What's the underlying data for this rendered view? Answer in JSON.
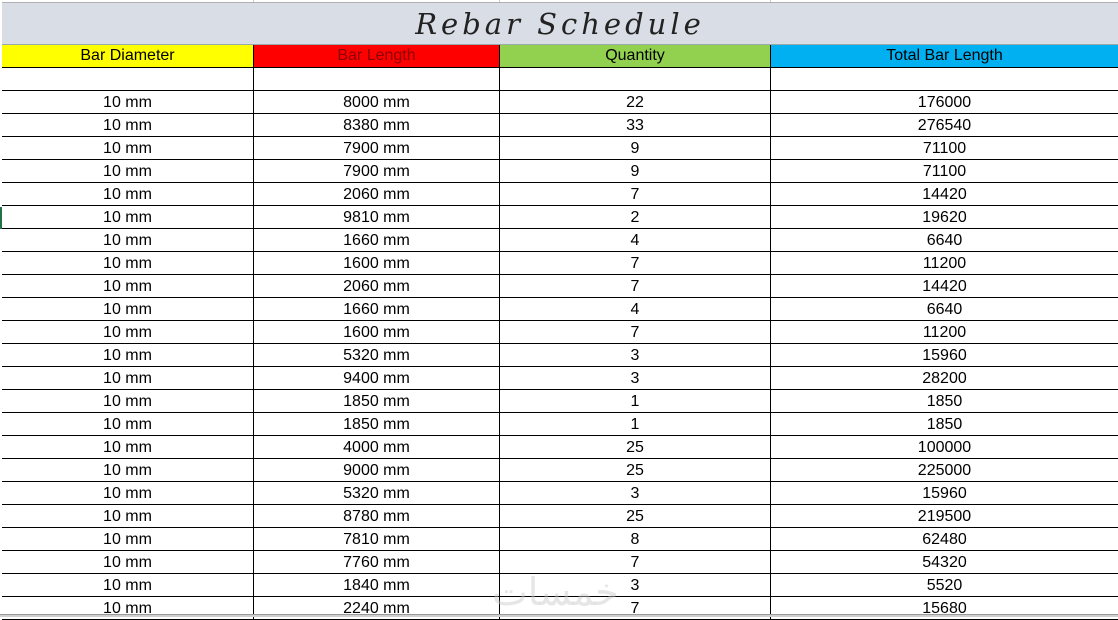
{
  "title": "Rebar Schedule",
  "headers": [
    {
      "label": "Bar Diameter",
      "bg": "#ffff00",
      "color": "#000000"
    },
    {
      "label": "Bar Length",
      "bg": "#ff0000",
      "color": "#8b0000"
    },
    {
      "label": "Quantity",
      "bg": "#92d050",
      "color": "#000000"
    },
    {
      "label": "Total Bar Length",
      "bg": "#00b0f0",
      "color": "#000000"
    }
  ],
  "rows": [
    [
      "10 mm",
      "8000 mm",
      "22",
      "176000"
    ],
    [
      "10 mm",
      "8380 mm",
      "33",
      "276540"
    ],
    [
      "10 mm",
      "7900 mm",
      "9",
      "71100"
    ],
    [
      "10 mm",
      "7900 mm",
      "9",
      "71100"
    ],
    [
      "10 mm",
      "2060 mm",
      "7",
      "14420"
    ],
    [
      "10 mm",
      "9810 mm",
      "2",
      "19620"
    ],
    [
      "10 mm",
      "1660 mm",
      "4",
      "6640"
    ],
    [
      "10 mm",
      "1600 mm",
      "7",
      "11200"
    ],
    [
      "10 mm",
      "2060 mm",
      "7",
      "14420"
    ],
    [
      "10 mm",
      "1660 mm",
      "4",
      "6640"
    ],
    [
      "10 mm",
      "1600 mm",
      "7",
      "11200"
    ],
    [
      "10 mm",
      "5320 mm",
      "3",
      "15960"
    ],
    [
      "10 mm",
      "9400 mm",
      "3",
      "28200"
    ],
    [
      "10 mm",
      "1850 mm",
      "1",
      "1850"
    ],
    [
      "10 mm",
      "1850 mm",
      "1",
      "1850"
    ],
    [
      "10 mm",
      "4000 mm",
      "25",
      "100000"
    ],
    [
      "10 mm",
      "9000 mm",
      "25",
      "225000"
    ],
    [
      "10 mm",
      "5320 mm",
      "3",
      "15960"
    ],
    [
      "10 mm",
      "8780 mm",
      "25",
      "219500"
    ],
    [
      "10 mm",
      "7810 mm",
      "8",
      "62480"
    ],
    [
      "10 mm",
      "7760 mm",
      "7",
      "54320"
    ],
    [
      "10 mm",
      "1840 mm",
      "3",
      "5520"
    ],
    [
      "10 mm",
      "2240 mm",
      "7",
      "15680"
    ]
  ],
  "watermark": "خمسات"
}
